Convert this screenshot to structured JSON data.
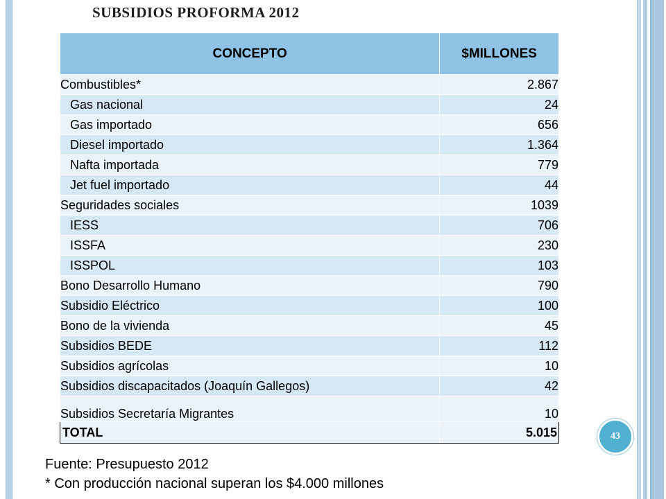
{
  "slide": {
    "title": "SUBSIDIOS PROFORMA 2012",
    "page_number": "43"
  },
  "table": {
    "headers": [
      "CONCEPTO",
      "$MILLONES"
    ],
    "rows": [
      {
        "label": "Combustibles*",
        "value": "2.867",
        "indent": false
      },
      {
        "label": "Gas nacional",
        "value": "24",
        "indent": true
      },
      {
        "label": "Gas importado",
        "value": "656",
        "indent": true
      },
      {
        "label": "Diesel importado",
        "value": "1.364",
        "indent": true
      },
      {
        "label": "Nafta importada",
        "value": "779",
        "indent": true
      },
      {
        "label": "Jet fuel importado",
        "value": "44",
        "indent": true
      },
      {
        "label": "Seguridades sociales",
        "value": "1039",
        "indent": false
      },
      {
        "label": "IESS",
        "value": "706",
        "indent": true
      },
      {
        "label": "ISSFA",
        "value": "230",
        "indent": true
      },
      {
        "label": "ISSPOL",
        "value": "103",
        "indent": true
      },
      {
        "label": "Bono Desarrollo Humano",
        "value": "790",
        "indent": false
      },
      {
        "label": "Subsidio Eléctrico",
        "value": "100",
        "indent": false
      },
      {
        "label": "Bono de la vivienda",
        "value": "45",
        "indent": false
      },
      {
        "label": "Subsidios BEDE",
        "value": "112",
        "indent": false
      },
      {
        "label": "Subsidios agrícolas",
        "value": "10",
        "indent": false
      },
      {
        "label": "Subsidios discapacitados (Joaquín Gallegos)",
        "value": "42",
        "indent": false
      },
      {
        "label": "Subsidios Secretaría Migrantes",
        "value": "10",
        "indent": false
      }
    ],
    "total": {
      "label": "TOTAL",
      "value": "5.015"
    }
  },
  "footnotes": {
    "source": "Fuente: Presupuesto 2012",
    "note": "* Con producción nacional superan los $4.000 millones"
  },
  "colors": {
    "header_fill": "#8ec3e6",
    "row_fill_light": "#eaf3f9",
    "row_fill_dark": "#d6e8f4",
    "badge": "#4fb0cf",
    "frame": "#b8d3e6"
  }
}
